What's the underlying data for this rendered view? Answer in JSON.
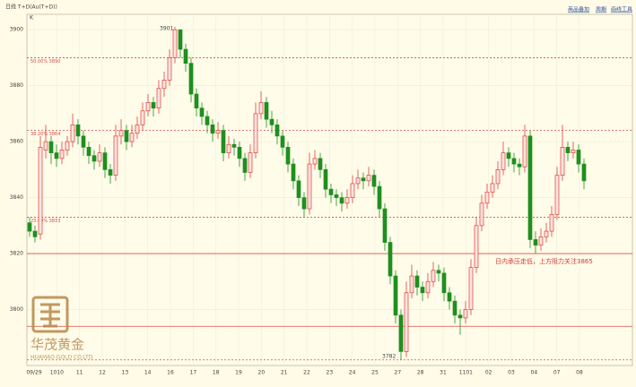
{
  "chart_data": {
    "type": "candlestick",
    "title": "日线 T+D(Au(T+D))",
    "toolbar": [
      "商品叠加",
      "周期",
      "画线工具"
    ],
    "corner_label": "K",
    "brand": {
      "name": "华茂黄金",
      "sub": "HUAMAO GOLD CO.LTD"
    },
    "annotations": {
      "high": "3901",
      "low": "3782",
      "note": "日内承压走低，上方阻力关注3865"
    },
    "ylim": [
      3780,
      3905.5
    ],
    "yticks": [
      3800,
      3820,
      3840,
      3860,
      3880,
      3900
    ],
    "grid": true,
    "xlabels": [
      "09/29",
      "1010",
      "11",
      "12",
      "13",
      "14",
      "16",
      "17",
      "18",
      "19",
      "20",
      "21",
      "22",
      "23",
      "24",
      "25",
      "27",
      "28",
      "31",
      "1101",
      "02",
      "03",
      "04",
      "07",
      "08"
    ],
    "up_color": "#e23b3b",
    "down_color": "#1f8f1f",
    "levels": [
      {
        "value": 3890,
        "label": "50.00% 3890",
        "style": "dashed"
      },
      {
        "value": 3864,
        "label": "38.20% 3864",
        "style": "dashed"
      },
      {
        "value": 3833,
        "label": "23.60% 3833",
        "style": "dashed"
      },
      {
        "value": 3820,
        "style": "solid"
      },
      {
        "value": 3794,
        "style": "solid"
      },
      {
        "value": 3782,
        "style": "dashed"
      }
    ],
    "ohlc": [
      [
        3831,
        3833,
        3826,
        3828
      ],
      [
        3828,
        3830,
        3824,
        3826
      ],
      [
        3827,
        3862,
        3825,
        3858
      ],
      [
        3857,
        3866,
        3854,
        3860
      ],
      [
        3860,
        3862,
        3852,
        3856
      ],
      [
        3856,
        3859,
        3851,
        3854
      ],
      [
        3854,
        3860,
        3852,
        3857
      ],
      [
        3857,
        3862,
        3855,
        3860
      ],
      [
        3860,
        3870,
        3858,
        3866
      ],
      [
        3866,
        3868,
        3859,
        3862
      ],
      [
        3862,
        3864,
        3855,
        3858
      ],
      [
        3858,
        3860,
        3852,
        3855
      ],
      [
        3855,
        3857,
        3850,
        3853
      ],
      [
        3853,
        3859,
        3851,
        3856
      ],
      [
        3856,
        3858,
        3847,
        3850
      ],
      [
        3850,
        3852,
        3845,
        3848
      ],
      [
        3848,
        3866,
        3846,
        3862
      ],
      [
        3862,
        3868,
        3859,
        3864
      ],
      [
        3864,
        3866,
        3857,
        3860
      ],
      [
        3860,
        3866,
        3858,
        3863
      ],
      [
        3863,
        3869,
        3861,
        3866
      ],
      [
        3866,
        3874,
        3864,
        3871
      ],
      [
        3871,
        3877,
        3869,
        3874
      ],
      [
        3874,
        3876,
        3869,
        3872
      ],
      [
        3872,
        3882,
        3870,
        3879
      ],
      [
        3879,
        3885,
        3876,
        3882
      ],
      [
        3882,
        3893,
        3880,
        3890
      ],
      [
        3890,
        3901,
        3888,
        3900
      ],
      [
        3900,
        3900,
        3890,
        3893
      ],
      [
        3893,
        3895,
        3885,
        3888
      ],
      [
        3888,
        3890,
        3874,
        3877
      ],
      [
        3877,
        3879,
        3869,
        3872
      ],
      [
        3872,
        3874,
        3866,
        3869
      ],
      [
        3869,
        3871,
        3863,
        3866
      ],
      [
        3866,
        3868,
        3860,
        3863
      ],
      [
        3863,
        3867,
        3861,
        3864
      ],
      [
        3864,
        3866,
        3853,
        3856
      ],
      [
        3856,
        3862,
        3854,
        3859
      ],
      [
        3859,
        3861,
        3855,
        3858
      ],
      [
        3858,
        3860,
        3851,
        3854
      ],
      [
        3854,
        3856,
        3846,
        3849
      ],
      [
        3849,
        3859,
        3847,
        3856
      ],
      [
        3856,
        3874,
        3854,
        3870
      ],
      [
        3870,
        3878,
        3868,
        3874
      ],
      [
        3874,
        3876,
        3865,
        3868
      ],
      [
        3868,
        3871,
        3863,
        3866
      ],
      [
        3866,
        3868,
        3859,
        3862
      ],
      [
        3862,
        3864,
        3855,
        3858
      ],
      [
        3858,
        3860,
        3849,
        3852
      ],
      [
        3852,
        3854,
        3843,
        3846
      ],
      [
        3846,
        3848,
        3837,
        3840
      ],
      [
        3840,
        3842,
        3833,
        3836
      ],
      [
        3836,
        3856,
        3834,
        3852
      ],
      [
        3852,
        3857,
        3850,
        3854
      ],
      [
        3854,
        3856,
        3847,
        3850
      ],
      [
        3850,
        3852,
        3840,
        3843
      ],
      [
        3843,
        3845,
        3838,
        3841
      ],
      [
        3841,
        3843,
        3837,
        3840
      ],
      [
        3840,
        3842,
        3835,
        3838
      ],
      [
        3838,
        3843,
        3836,
        3840
      ],
      [
        3840,
        3848,
        3838,
        3845
      ],
      [
        3845,
        3850,
        3843,
        3847
      ],
      [
        3847,
        3849,
        3843,
        3846
      ],
      [
        3846,
        3851,
        3844,
        3848
      ],
      [
        3848,
        3850,
        3841,
        3844
      ],
      [
        3844,
        3846,
        3833,
        3836
      ],
      [
        3836,
        3838,
        3821,
        3824
      ],
      [
        3824,
        3826,
        3809,
        3812
      ],
      [
        3812,
        3814,
        3795,
        3798
      ],
      [
        3798,
        3800,
        3782,
        3785
      ],
      [
        3785,
        3810,
        3783,
        3806
      ],
      [
        3806,
        3816,
        3804,
        3812
      ],
      [
        3812,
        3814,
        3805,
        3808
      ],
      [
        3808,
        3810,
        3803,
        3806
      ],
      [
        3806,
        3813,
        3804,
        3810
      ],
      [
        3810,
        3817,
        3808,
        3814
      ],
      [
        3814,
        3816,
        3810,
        3813
      ],
      [
        3813,
        3815,
        3803,
        3806
      ],
      [
        3806,
        3808,
        3800,
        3803
      ],
      [
        3803,
        3805,
        3795,
        3798
      ],
      [
        3798,
        3800,
        3791,
        3797
      ],
      [
        3797,
        3803,
        3795,
        3800
      ],
      [
        3800,
        3818,
        3798,
        3815
      ],
      [
        3815,
        3833,
        3813,
        3830
      ],
      [
        3830,
        3841,
        3828,
        3838
      ],
      [
        3838,
        3845,
        3836,
        3842
      ],
      [
        3842,
        3848,
        3840,
        3845
      ],
      [
        3845,
        3853,
        3843,
        3850
      ],
      [
        3850,
        3860,
        3848,
        3856
      ],
      [
        3856,
        3858,
        3851,
        3854
      ],
      [
        3854,
        3856,
        3849,
        3852
      ],
      [
        3852,
        3854,
        3848,
        3851
      ],
      [
        3851,
        3866,
        3849,
        3862
      ],
      [
        3862,
        3864,
        3822,
        3825
      ],
      [
        3825,
        3828,
        3820,
        3823
      ],
      [
        3823,
        3829,
        3821,
        3826
      ],
      [
        3826,
        3831,
        3824,
        3828
      ],
      [
        3828,
        3837,
        3826,
        3834
      ],
      [
        3834,
        3851,
        3832,
        3848
      ],
      [
        3848,
        3866,
        3846,
        3858
      ],
      [
        3858,
        3860,
        3853,
        3856
      ],
      [
        3856,
        3860,
        3854,
        3857
      ],
      [
        3857,
        3859,
        3849,
        3852
      ],
      [
        3852,
        3854,
        3843,
        3846
      ]
    ]
  }
}
